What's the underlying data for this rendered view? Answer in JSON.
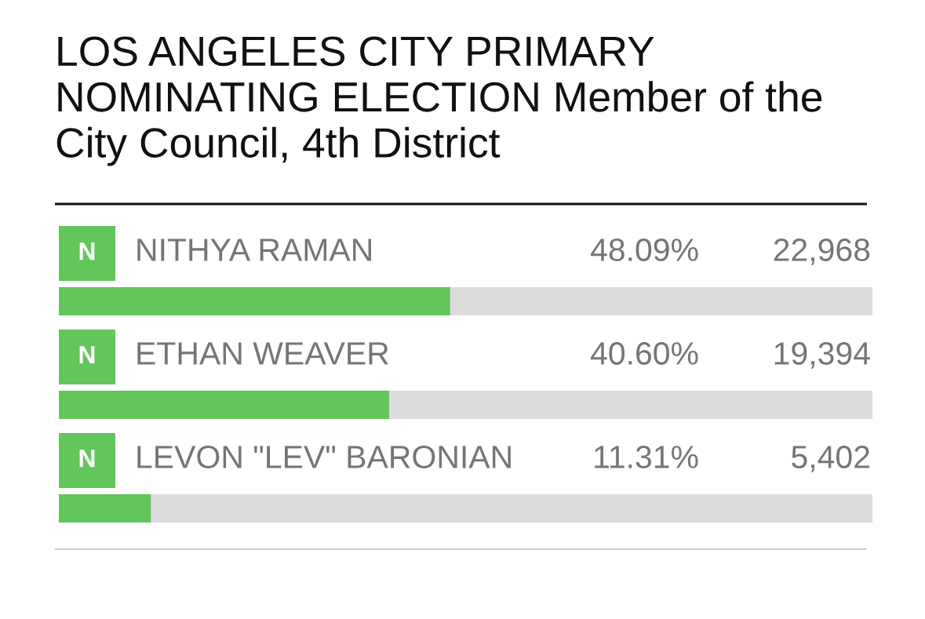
{
  "chart_data": {
    "type": "bar",
    "orientation": "horizontal",
    "title": "LOS ANGELES CITY PRIMARY NOMINATING ELECTION Member of the City Council, 4th District",
    "categories": [
      "NITHYA RAMAN",
      "ETHAN WEAVER",
      "LEVON \"LEV\" BARONIAN"
    ],
    "values": [
      48.09,
      40.6,
      11.31
    ],
    "color": "#62c65a",
    "xlim": [
      0,
      100
    ],
    "tick_labels": false,
    "value_labels": [
      "48.09%",
      "40.60%",
      "11.31%"
    ],
    "annotations": [
      "N",
      "N",
      "N",
      "22,968",
      "19,394",
      "5,402"
    ]
  }
}
